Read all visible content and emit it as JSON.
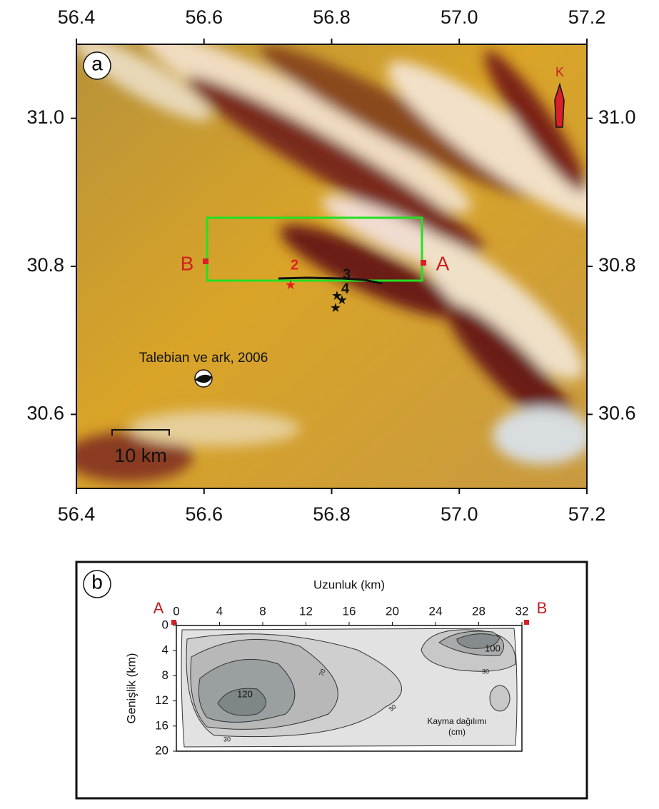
{
  "panel_a": {
    "label": "a",
    "xlim": [
      56.4,
      57.2
    ],
    "xticks": [
      56.4,
      56.6,
      56.8,
      {
        "value": 57,
        "label": "57.0"
      },
      57.2
    ],
    "ylim": [
      30.5,
      31.1
    ],
    "yticks": [
      {
        "value": 31,
        "label": "31.0"
      },
      30.8,
      30.6
    ],
    "north": "K",
    "point_b": "B",
    "point_a": "A",
    "events": [
      "2",
      "3",
      "4"
    ],
    "source": "Talebian ve ark, 2006",
    "scale": "10 km"
  },
  "panel_b": {
    "label": "b",
    "xlabel": "Uzunluk (km)",
    "ylabel": "Genişlik (km)",
    "xlim": [
      0,
      32
    ],
    "xticks": [
      0,
      4,
      8,
      12,
      16,
      20,
      24,
      28,
      32
    ],
    "ylim": [
      0,
      20
    ],
    "yticks": [
      0,
      4,
      8,
      12,
      16,
      20
    ],
    "left_end": "A",
    "right_end": "B",
    "contour_labels": [
      120,
      70,
      30,
      30,
      30,
      100
    ],
    "legend": [
      "Kayma dağılımı",
      "(cm)"
    ]
  }
}
